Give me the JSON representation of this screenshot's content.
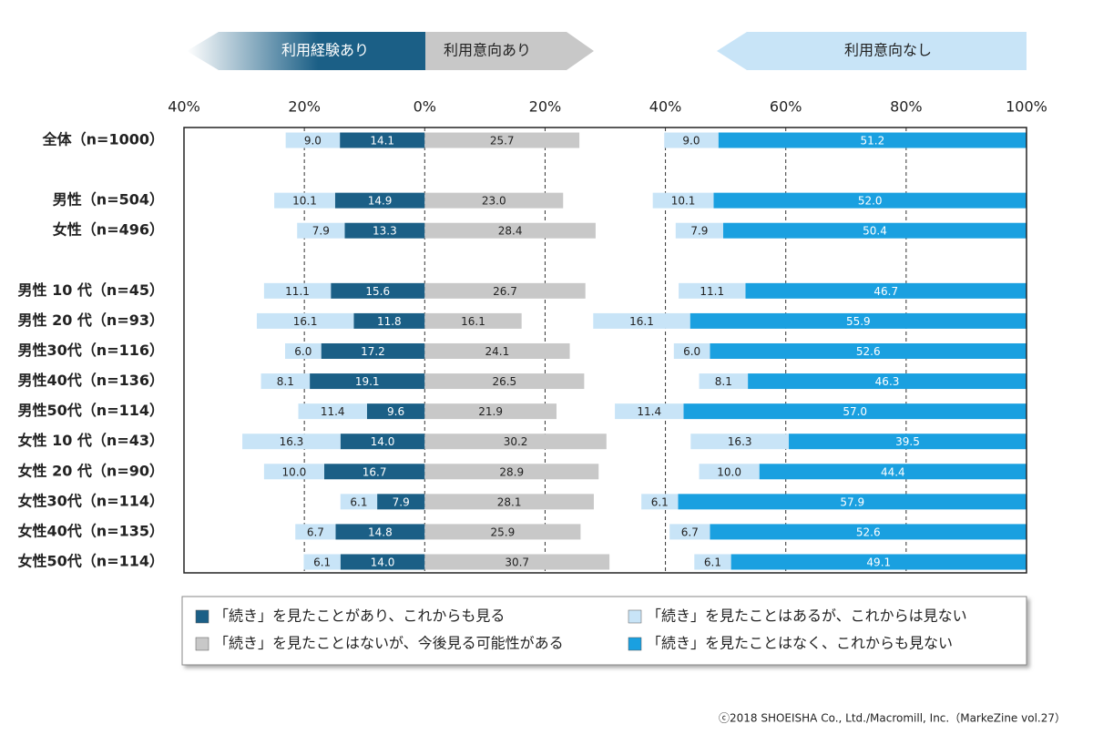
{
  "chart_data": {
    "type": "bar",
    "orientation": "horizontal",
    "group_labels": [
      "利用経験あり",
      "利用意向あり",
      "利用意向なし"
    ],
    "categories": [
      "全体（n=1000）",
      null,
      "男性（n=504）",
      "女性（n=496）",
      null,
      "男性 10 代（n=45）",
      "男性 20 代（n=93）",
      "男性30代（n=116）",
      "男性40代（n=136）",
      "男性50代（n=114）",
      "女性 10 代（n=43）",
      "女性 20 代（n=90）",
      "女性30代（n=114）",
      "女性40代（n=135）",
      "女性50代（n=114）"
    ],
    "series": [
      {
        "name": "「続き」を見たことがあり、これからも見る",
        "color": "#1b5f86",
        "text_color": "#ffffff",
        "values": [
          14.1,
          null,
          14.9,
          13.3,
          null,
          15.6,
          11.8,
          17.2,
          19.1,
          9.6,
          14.0,
          16.7,
          7.9,
          14.8,
          14.0
        ],
        "value_labels": [
          "14.1",
          null,
          "14.9",
          "13.3",
          null,
          "15.6",
          "11.8",
          "17.2",
          "19.1",
          "9.6",
          "14.0",
          "16.7",
          "7.9",
          "14.8",
          "14.0"
        ]
      },
      {
        "name": "「続き」を見たことはあるが、これからは見ない",
        "color": "#c8e4f7",
        "text_color": "#222222",
        "values": [
          9.0,
          null,
          10.1,
          7.9,
          null,
          11.1,
          16.1,
          6.0,
          8.1,
          11.4,
          16.3,
          10.0,
          6.1,
          6.7,
          6.1
        ],
        "value_labels": [
          "9.0",
          null,
          "10.1",
          "7.9",
          null,
          "11.1",
          "16.1",
          "6.0",
          "8.1",
          "11.4",
          "16.3",
          "10.0",
          "6.1",
          "6.7",
          "6.1"
        ]
      },
      {
        "name": "「続き」を見たことはないが、今後見る可能性がある",
        "color": "#c8c8c8",
        "text_color": "#222222",
        "values": [
          25.7,
          null,
          23.0,
          28.4,
          null,
          26.7,
          16.1,
          24.1,
          26.5,
          21.9,
          30.2,
          28.9,
          28.1,
          25.9,
          30.7
        ],
        "value_labels": [
          "25.7",
          null,
          "23.0",
          "28.4",
          null,
          "26.7",
          "16.1",
          "24.1",
          "26.5",
          "21.9",
          "30.2",
          "28.9",
          "28.1",
          "25.9",
          "30.7"
        ]
      },
      {
        "name": "「続き」を見たことはなく、これからも見ない",
        "color": "#1aa0e0",
        "text_color": "#ffffff",
        "values": [
          51.2,
          null,
          52.0,
          50.4,
          null,
          46.7,
          55.9,
          52.6,
          46.3,
          57.0,
          39.5,
          44.4,
          57.9,
          52.6,
          49.1
        ],
        "value_labels": [
          "51.2",
          null,
          "52.0",
          "50.4",
          null,
          "46.7",
          "55.9",
          "52.6",
          "46.3",
          "57.0",
          "39.5",
          "44.4",
          "57.9",
          "52.6",
          "49.1"
        ]
      }
    ],
    "xlim": [
      -40,
      100
    ],
    "xticks": [
      {
        "value": -40,
        "label": "40%"
      },
      {
        "value": -20,
        "label": "20%"
      },
      {
        "value": 0,
        "label": "0%"
      },
      {
        "value": 20,
        "label": "20%"
      },
      {
        "value": 40,
        "label": "40%"
      },
      {
        "value": 60,
        "label": "60%"
      },
      {
        "value": 80,
        "label": "80%"
      },
      {
        "value": 100,
        "label": "100%"
      }
    ],
    "grid": true,
    "copyright": "ⓒ2018 SHOEISHA Co., Ltd./Macromill, Inc.（MarkeZine vol.27）"
  }
}
